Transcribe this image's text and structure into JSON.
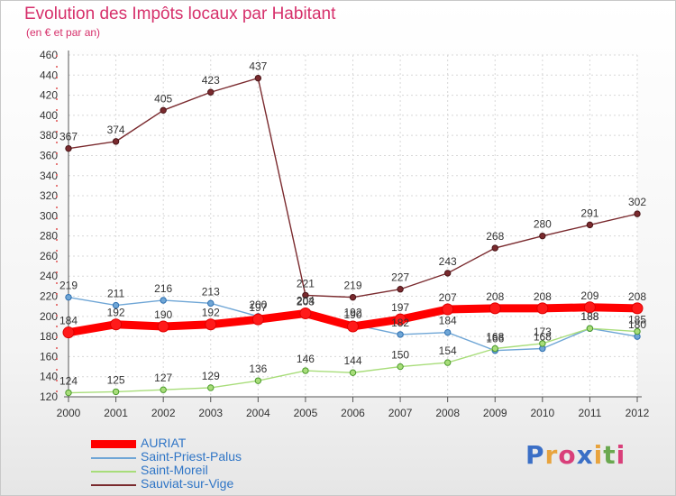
{
  "header": {
    "title": "Evolution des Impôts locaux par Habitant",
    "subtitle": "(en € et par an)"
  },
  "logo": {
    "text": "Proxiti",
    "colors": [
      "#3b6fc6",
      "#e8a33d",
      "#d93f7a",
      "#3b6fc6",
      "#e8a33d",
      "#6aa84f",
      "#d93f7a"
    ]
  },
  "chart_data": {
    "type": "line",
    "x": [
      2000,
      2001,
      2002,
      2003,
      2004,
      2005,
      2006,
      2007,
      2008,
      2009,
      2010,
      2011,
      2012
    ],
    "ylim": [
      120,
      460
    ],
    "yticks": [
      120,
      140,
      160,
      180,
      200,
      220,
      240,
      260,
      280,
      300,
      320,
      340,
      360,
      380,
      400,
      420,
      440,
      460
    ],
    "grid": true,
    "legend_position": "bottom-left",
    "series": [
      {
        "name": "Sauviat-sur-Vige",
        "color": "#7a2a2e",
        "values": [
          367,
          374,
          405,
          423,
          437,
          221,
          219,
          227,
          243,
          268,
          280,
          291,
          302
        ]
      },
      {
        "name": "Saint-Priest-Palus",
        "color": "#6fa6d6",
        "values": [
          219,
          211,
          216,
          213,
          200,
          204,
          192,
          182,
          184,
          166,
          168,
          188,
          180
        ]
      },
      {
        "name": "Saint-Moreil",
        "color": "#a8dd7a",
        "values": [
          124,
          125,
          127,
          129,
          136,
          146,
          144,
          150,
          154,
          168,
          173,
          188,
          185
        ]
      },
      {
        "name": "AURIAT",
        "color": "#ff0000",
        "values": [
          184,
          192,
          190,
          192,
          197,
          203,
          190,
          197,
          207,
          208,
          208,
          209,
          208
        ]
      }
    ],
    "legend_order": [
      "AURIAT",
      "Saint-Priest-Palus",
      "Saint-Moreil",
      "Sauviat-sur-Vige"
    ]
  }
}
